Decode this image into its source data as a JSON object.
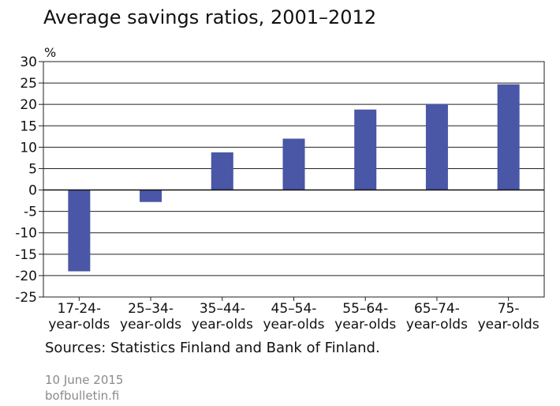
{
  "chart_data": {
    "type": "bar",
    "title": "Average savings ratios, 2001–2012",
    "ylabel": "%",
    "xlabel": "",
    "ylim": [
      -25,
      30
    ],
    "yticks": [
      30,
      25,
      20,
      15,
      10,
      5,
      0,
      -5,
      -10,
      -15,
      -20,
      -25
    ],
    "grid": true,
    "categories": [
      [
        "17-24-",
        "year-olds"
      ],
      [
        "25–34-",
        "year-olds"
      ],
      [
        "35–44-",
        "year-olds"
      ],
      [
        "45–54-",
        "year-olds"
      ],
      [
        "55–64-",
        "year-olds"
      ],
      [
        "65–74-",
        "year-olds"
      ],
      [
        "75-",
        "year-olds"
      ]
    ],
    "values": [
      -19,
      -2.8,
      8.8,
      12,
      18.8,
      20.1,
      24.7
    ],
    "bar_color": "#4a56a6"
  },
  "footer": {
    "sources": "Sources: Statistics Finland and Bank of Finland.",
    "date": "10 June 2015",
    "site": "bofbulletin.fi"
  }
}
